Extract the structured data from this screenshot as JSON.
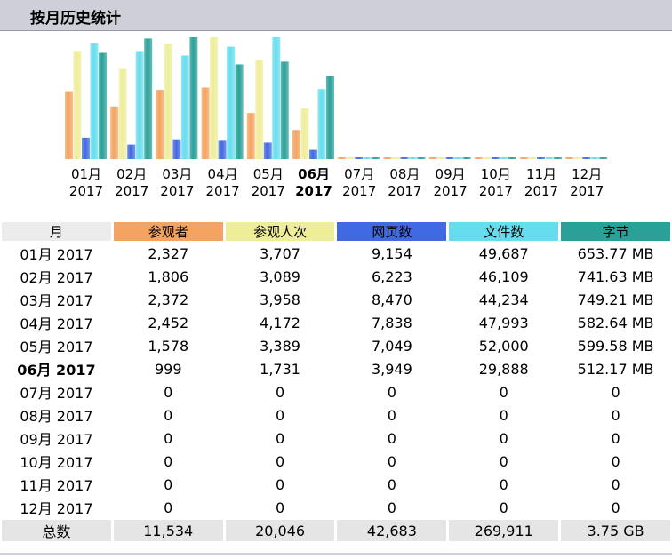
{
  "header": {
    "title": "按月历史统计"
  },
  "colors": {
    "visitors": "#f4a460",
    "visits": "#eeee99",
    "pages": "#4169e1",
    "files": "#66ddee",
    "bytes": "#2aa198",
    "header_month_bg": "#ececec"
  },
  "chart_data": {
    "type": "bar",
    "categories": [
      "01月 2017",
      "02月 2017",
      "03月 2017",
      "04月 2017",
      "05月 2017",
      "06月 2017",
      "07月 2017",
      "08月 2017",
      "09月 2017",
      "10月 2017",
      "11月 2017",
      "12月 2017"
    ],
    "current_index": 5,
    "series": [
      {
        "name": "参观者",
        "values": [
          2327,
          1806,
          2372,
          2452,
          1578,
          999,
          0,
          0,
          0,
          0,
          0,
          0
        ]
      },
      {
        "name": "参观人次",
        "values": [
          3707,
          3089,
          3958,
          4172,
          3389,
          1731,
          0,
          0,
          0,
          0,
          0,
          0
        ]
      },
      {
        "name": "网页数",
        "values": [
          9154,
          6223,
          8470,
          7838,
          7049,
          3949,
          0,
          0,
          0,
          0,
          0,
          0
        ]
      },
      {
        "name": "文件数",
        "values": [
          49687,
          46109,
          44234,
          47993,
          52000,
          29888,
          0,
          0,
          0,
          0,
          0,
          0
        ]
      },
      {
        "name": "字节",
        "values": [
          653.77,
          741.63,
          749.21,
          582.64,
          599.58,
          512.17,
          0,
          0,
          0,
          0,
          0,
          0
        ]
      }
    ]
  },
  "table": {
    "headers": [
      "月",
      "参观者",
      "参观人次",
      "网页数",
      "文件数",
      "字节"
    ],
    "rows": [
      [
        "01月 2017",
        "2,327",
        "3,707",
        "9,154",
        "49,687",
        "653.77 MB"
      ],
      [
        "02月 2017",
        "1,806",
        "3,089",
        "6,223",
        "46,109",
        "741.63 MB"
      ],
      [
        "03月 2017",
        "2,372",
        "3,958",
        "8,470",
        "44,234",
        "749.21 MB"
      ],
      [
        "04月 2017",
        "2,452",
        "4,172",
        "7,838",
        "47,993",
        "582.64 MB"
      ],
      [
        "05月 2017",
        "1,578",
        "3,389",
        "7,049",
        "52,000",
        "599.58 MB"
      ],
      [
        "06月 2017",
        "999",
        "1,731",
        "3,949",
        "29,888",
        "512.17 MB"
      ],
      [
        "07月 2017",
        "0",
        "0",
        "0",
        "0",
        "0"
      ],
      [
        "08月 2017",
        "0",
        "0",
        "0",
        "0",
        "0"
      ],
      [
        "09月 2017",
        "0",
        "0",
        "0",
        "0",
        "0"
      ],
      [
        "10月 2017",
        "0",
        "0",
        "0",
        "0",
        "0"
      ],
      [
        "11月 2017",
        "0",
        "0",
        "0",
        "0",
        "0"
      ],
      [
        "12月 2017",
        "0",
        "0",
        "0",
        "0",
        "0"
      ]
    ],
    "total": [
      "总数",
      "11,534",
      "20,046",
      "42,683",
      "269,911",
      "3.75 GB"
    ]
  }
}
